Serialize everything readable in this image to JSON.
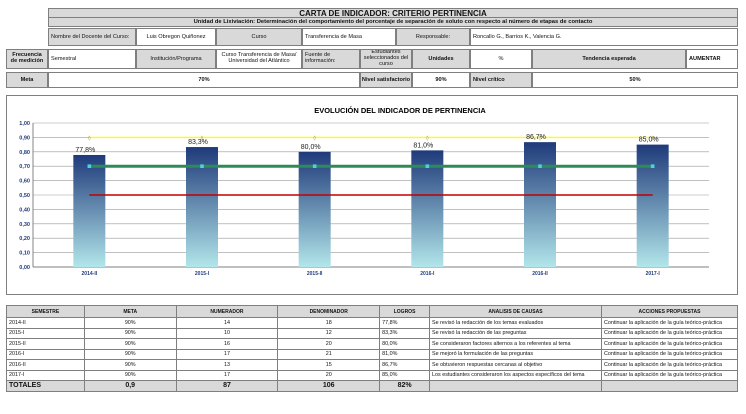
{
  "header": {
    "title": "CARTA DE INDICADOR: CRITERIO PERTINENCIA",
    "subtitle": "Unidad de Lixiviación: Determinación del comportamiento del porcentaje de separación de soluto con respecto al número de etapas de contacto"
  },
  "row1": {
    "docente_label": "Nombre del Docente del Curso:",
    "docente_value": "Luis Obregon Quiñonez",
    "curso_label": "Curso",
    "curso_value": "Transferencia de Masa",
    "responsable_label": "Responsable:",
    "responsable_value": "Roncallo G., Barrios K., Valencia G."
  },
  "row2": {
    "frecuencia_label": "Frecuencia de medición",
    "frecuencia_value": "Semestral",
    "institucion_label": "Institución/Programa",
    "institucion_value": "Curso Transferencia de Masa/ Universidad del Atlántico",
    "fuente_label": "Fuente de información:",
    "estudiantes_label": "Estudiantes seleccionados del curso",
    "unidades_label": "Unidades",
    "unidades_value": "%",
    "tendencia_label": "Tendencia esperada",
    "tendencia_value": "AUMENTAR"
  },
  "row3": {
    "meta_label": "Meta",
    "meta_value": "70%",
    "satisf_label": "Nivel satisfactorio",
    "satisf_value": "90%",
    "critico_label": "Nivel crítico",
    "critico_value": "50%"
  },
  "chart_data": {
    "type": "bar",
    "title": "EVOLUCIÓN DEL INDICADOR DE PERTINENCIA",
    "categories": [
      "2014-II",
      "2015-I",
      "2015-II",
      "2016-I",
      "2016-II",
      "2017-I"
    ],
    "values": [
      0.778,
      0.833,
      0.8,
      0.81,
      0.867,
      0.85
    ],
    "data_labels": [
      "77,8%",
      "83,3%",
      "80,0%",
      "81,0%",
      "86,7%",
      "85,0%"
    ],
    "reference_lines": [
      {
        "value": 0.9,
        "color": "#ffff00"
      },
      {
        "value": 0.7,
        "color": "#2e8b57"
      },
      {
        "value": 0.5,
        "color": "#c00000"
      }
    ],
    "ylim": [
      0,
      1
    ],
    "yticks": [
      "0,00",
      "0,10",
      "0,20",
      "0,30",
      "0,40",
      "0,50",
      "0,60",
      "0,70",
      "0,80",
      "0,90",
      "1,00"
    ],
    "grid": true,
    "bar_color_top": "#1f3a7a",
    "bar_color_bottom": "#b2e6ea"
  },
  "table": {
    "headers": [
      "SEMESTRE",
      "META",
      "NUMERADOR",
      "DENOMINADOR",
      "LOGROS",
      "ANALISIS DE CAUSAS",
      "ACCIONES PROPUESTAS"
    ],
    "rows": [
      [
        "2014-II",
        "90%",
        "14",
        "18",
        "77,8%",
        "Se revisó la redacción de los temas evaluados",
        "Continuar la aplicación de la guía teórico-práctica"
      ],
      [
        "2015-I",
        "90%",
        "10",
        "12",
        "83,3%",
        "Se revisó la redacción de las preguntas",
        "Continuar la aplicación de la guía teórico-práctica"
      ],
      [
        "2015-II",
        "90%",
        "16",
        "20",
        "80,0%",
        "Se consideraron factores alternos a los referentes al tema",
        "Continuar la aplicación de la guía teórico-práctica"
      ],
      [
        "2016-I",
        "90%",
        "17",
        "21",
        "81,0%",
        "Se mejoró la formulación de las preguntas",
        "Continuar la aplicación de la guía teórico-práctica"
      ],
      [
        "2016-II",
        "90%",
        "13",
        "15",
        "86,7%",
        "Se obtuvieron respuestas cercanas al objetivo",
        "Continuar la aplicación de la guía teórico-práctica"
      ],
      [
        "2017-I",
        "90%",
        "17",
        "20",
        "85,0%",
        "Los estudiantes consideraron los aspectos específicos del tema",
        "Continuar la aplicación de la guía teórico-práctica"
      ]
    ],
    "totals": [
      "TOTALES",
      "0,9",
      "87",
      "106",
      "82%",
      "",
      ""
    ]
  }
}
